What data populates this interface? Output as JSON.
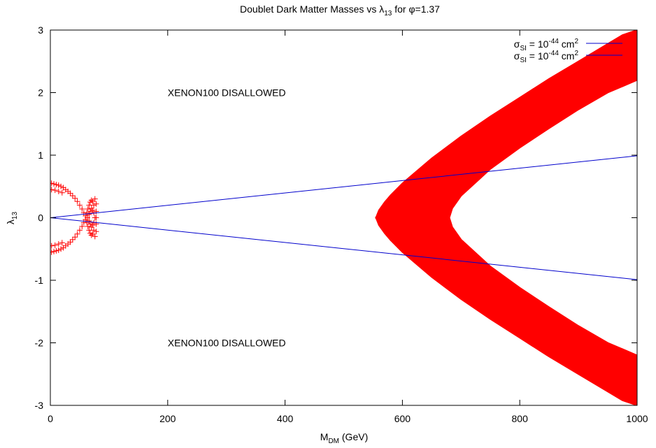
{
  "chart_data": {
    "type": "scatter",
    "title": {
      "prefix": "Doublet Dark Matter Masses vs ",
      "lambda_symbol": "λ",
      "lambda_sub": "13",
      "mid": " for ",
      "phi_symbol": "φ",
      "suffix": "=1.37"
    },
    "xlabel": {
      "main": "M",
      "sub": "DM",
      "rest": " (GeV)"
    },
    "ylabel": {
      "main": "λ",
      "sub": "13"
    },
    "xlim": [
      0,
      1000
    ],
    "ylim": [
      -3,
      3
    ],
    "x_ticks": [
      0,
      200,
      400,
      600,
      800,
      1000
    ],
    "y_ticks": [
      -3,
      -2,
      -1,
      0,
      1,
      2,
      3
    ],
    "grid": false,
    "legend": {
      "placement": "top-right",
      "entries": [
        {
          "sigma": "σ",
          "sub": "SI",
          "eq": " = 10",
          "exp": "-44",
          "unit": " cm",
          "unit_exp": "2",
          "color": "#0000cc"
        },
        {
          "sigma": "σ",
          "sub": "SI",
          "eq": " = 10",
          "exp": "-44",
          "unit": " cm",
          "unit_exp": "2",
          "color": "#0000cc"
        }
      ]
    },
    "annotations": [
      {
        "text": "XENON100 DISALLOWED",
        "x": 200,
        "y": 2.0
      },
      {
        "text": "XENON100 DISALLOWED",
        "x": 200,
        "y": -2.0
      }
    ],
    "series": [
      {
        "kind": "band",
        "color": "#ff0000",
        "description_note": "red allowed region, heavy-mass branch",
        "upper_outer": [
          [
            555,
            0.0
          ],
          [
            560,
            0.12
          ],
          [
            570,
            0.25
          ],
          [
            580,
            0.36
          ],
          [
            600,
            0.55
          ],
          [
            650,
            0.95
          ],
          [
            700,
            1.3
          ],
          [
            750,
            1.62
          ],
          [
            800,
            1.92
          ],
          [
            850,
            2.22
          ],
          [
            900,
            2.5
          ],
          [
            950,
            2.78
          ],
          [
            975,
            2.92
          ],
          [
            1000,
            3.0
          ]
        ],
        "upper_inner": [
          [
            680,
            0.0
          ],
          [
            685,
            0.15
          ],
          [
            700,
            0.35
          ],
          [
            750,
            0.78
          ],
          [
            800,
            1.12
          ],
          [
            850,
            1.43
          ],
          [
            900,
            1.73
          ],
          [
            950,
            2.0
          ],
          [
            1000,
            2.2
          ]
        ],
        "lower_outer": [
          [
            555,
            0.0
          ],
          [
            560,
            -0.12
          ],
          [
            570,
            -0.25
          ],
          [
            580,
            -0.36
          ],
          [
            600,
            -0.55
          ],
          [
            650,
            -0.95
          ],
          [
            700,
            -1.3
          ],
          [
            750,
            -1.62
          ],
          [
            800,
            -1.92
          ],
          [
            850,
            -2.22
          ],
          [
            900,
            -2.5
          ],
          [
            950,
            -2.78
          ],
          [
            975,
            -2.92
          ],
          [
            1000,
            -3.0
          ]
        ],
        "lower_inner": [
          [
            680,
            0.0
          ],
          [
            685,
            -0.15
          ],
          [
            700,
            -0.35
          ],
          [
            750,
            -0.78
          ],
          [
            800,
            -1.12
          ],
          [
            850,
            -1.43
          ],
          [
            900,
            -1.73
          ],
          [
            950,
            -2.0
          ],
          [
            1000,
            -2.2
          ]
        ]
      },
      {
        "kind": "points",
        "color": "#ff0000",
        "points": [
          [
            2,
            0.55
          ],
          [
            6,
            0.54
          ],
          [
            10,
            0.53
          ],
          [
            14,
            0.52
          ],
          [
            18,
            0.5
          ],
          [
            22,
            0.48
          ],
          [
            26,
            0.45
          ],
          [
            30,
            0.42
          ],
          [
            34,
            0.39
          ],
          [
            38,
            0.35
          ],
          [
            42,
            0.31
          ],
          [
            46,
            0.26
          ],
          [
            50,
            0.2
          ],
          [
            54,
            0.14
          ],
          [
            57,
            0.08
          ],
          [
            60,
            0.03
          ],
          [
            2,
            -0.55
          ],
          [
            6,
            -0.54
          ],
          [
            10,
            -0.53
          ],
          [
            14,
            -0.52
          ],
          [
            18,
            -0.5
          ],
          [
            22,
            -0.48
          ],
          [
            26,
            -0.45
          ],
          [
            30,
            -0.42
          ],
          [
            34,
            -0.39
          ],
          [
            38,
            -0.35
          ],
          [
            42,
            -0.31
          ],
          [
            46,
            -0.26
          ],
          [
            50,
            -0.2
          ],
          [
            54,
            -0.14
          ],
          [
            57,
            -0.08
          ],
          [
            60,
            -0.03
          ],
          [
            2,
            0.45
          ],
          [
            8,
            0.44
          ],
          [
            14,
            0.42
          ],
          [
            20,
            0.4
          ],
          [
            2,
            -0.45
          ],
          [
            8,
            -0.44
          ],
          [
            14,
            -0.42
          ],
          [
            20,
            -0.4
          ],
          [
            62,
            0.08
          ],
          [
            64,
            0.14
          ],
          [
            66,
            0.2
          ],
          [
            68,
            0.25
          ],
          [
            70,
            0.28
          ],
          [
            72,
            0.26
          ],
          [
            74,
            0.2
          ],
          [
            62,
            -0.08
          ],
          [
            64,
            -0.14
          ],
          [
            66,
            -0.2
          ],
          [
            68,
            -0.25
          ],
          [
            70,
            -0.28
          ],
          [
            72,
            -0.26
          ],
          [
            74,
            -0.2
          ],
          [
            63,
            0.0
          ],
          [
            66,
            0.05
          ],
          [
            68,
            0.1
          ],
          [
            70,
            0.15
          ],
          [
            72,
            0.12
          ],
          [
            74,
            0.08
          ],
          [
            76,
            0.0
          ],
          [
            66,
            -0.05
          ],
          [
            68,
            -0.1
          ],
          [
            70,
            -0.15
          ],
          [
            72,
            -0.12
          ],
          [
            74,
            -0.08
          ],
          [
            76,
            0.3
          ],
          [
            78,
            0.22
          ],
          [
            78,
            0.1
          ],
          [
            78,
            0.0
          ],
          [
            78,
            -0.1
          ],
          [
            78,
            -0.22
          ],
          [
            76,
            -0.3
          ]
        ]
      },
      {
        "kind": "line",
        "color": "#0000cc",
        "points": [
          [
            0,
            0.0
          ],
          [
            1000,
            0.99
          ]
        ]
      },
      {
        "kind": "line",
        "color": "#0000cc",
        "points": [
          [
            0,
            0.0
          ],
          [
            1000,
            -0.99
          ]
        ]
      }
    ]
  }
}
